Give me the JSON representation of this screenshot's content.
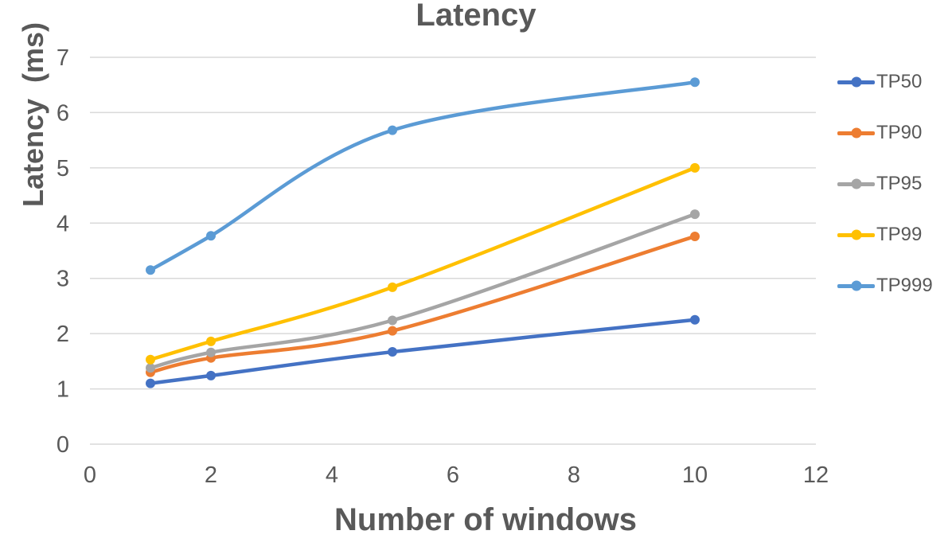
{
  "colors": {
    "background": "#FFFFFF",
    "text": "#595959",
    "gridline": "#D9D9D9"
  },
  "chart_data": {
    "type": "line",
    "title": "Latency",
    "xlabel": "Number of windows",
    "ylabel": "Latency  (ms)",
    "x": [
      1,
      2,
      5,
      10
    ],
    "series": [
      {
        "name": "TP50",
        "color": "#4472C4",
        "values": [
          1.1,
          1.24,
          1.67,
          2.25
        ]
      },
      {
        "name": "TP90",
        "color": "#ED7D31",
        "values": [
          1.3,
          1.56,
          2.05,
          3.76
        ]
      },
      {
        "name": "TP95",
        "color": "#A5A5A5",
        "values": [
          1.38,
          1.66,
          2.24,
          4.16
        ]
      },
      {
        "name": "TP99",
        "color": "#FFC000",
        "values": [
          1.53,
          1.86,
          2.84,
          5.0
        ]
      },
      {
        "name": "TP999",
        "color": "#5B9BD5",
        "values": [
          3.15,
          3.77,
          5.68,
          6.55
        ]
      }
    ],
    "xlim": [
      0,
      12
    ],
    "ylim": [
      0,
      7
    ],
    "xticks": [
      0,
      2,
      4,
      6,
      8,
      10,
      12
    ],
    "yticks": [
      0,
      1,
      2,
      3,
      4,
      5,
      6,
      7
    ],
    "grid": "horizontal",
    "legend_position": "right",
    "smooth": true,
    "marker": "circle"
  }
}
